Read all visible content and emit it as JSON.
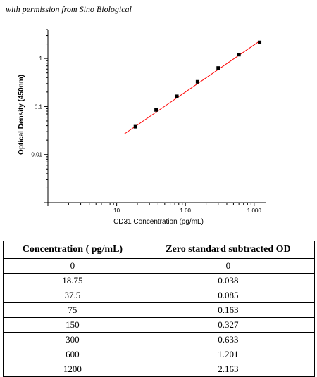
{
  "credit": "with permission from Sino Biological",
  "chart_data": {
    "type": "scatter",
    "xlabel": "CD31 Concentration (pg/mL)",
    "ylabel": "Optical Density (450nm)",
    "xscale": "log",
    "yscale": "log",
    "xlim": [
      1,
      1500
    ],
    "ylim": [
      0.001,
      4
    ],
    "x_ticks": [
      10,
      100,
      1000
    ],
    "x_tick_labels": [
      "10",
      "1 00",
      "1 000"
    ],
    "y_ticks": [
      1,
      0.1,
      0.01
    ],
    "y_tick_labels": [
      "1",
      "0.1",
      "0.01"
    ],
    "grid": false,
    "series": [
      {
        "points": [
          [
            18.75,
            0.038
          ],
          [
            37.5,
            0.085
          ],
          [
            75,
            0.163
          ],
          [
            150,
            0.327
          ],
          [
            300,
            0.633
          ],
          [
            600,
            1.201
          ],
          [
            1200,
            2.163
          ]
        ],
        "fit_line": [
          [
            13,
            0.027
          ],
          [
            1200,
            2.3
          ]
        ],
        "marker_color": "#000000",
        "line_color": "#ff0000"
      }
    ]
  },
  "table": {
    "headers": [
      "Concentration ( pg/mL)",
      "Zero standard subtracted OD"
    ],
    "rows": [
      [
        "0",
        "0"
      ],
      [
        "18.75",
        "0.038"
      ],
      [
        "37.5",
        "0.085"
      ],
      [
        "75",
        "0.163"
      ],
      [
        "150",
        "0.327"
      ],
      [
        "300",
        "0.633"
      ],
      [
        "600",
        "1.201"
      ],
      [
        "1200",
        "2.163"
      ]
    ]
  }
}
